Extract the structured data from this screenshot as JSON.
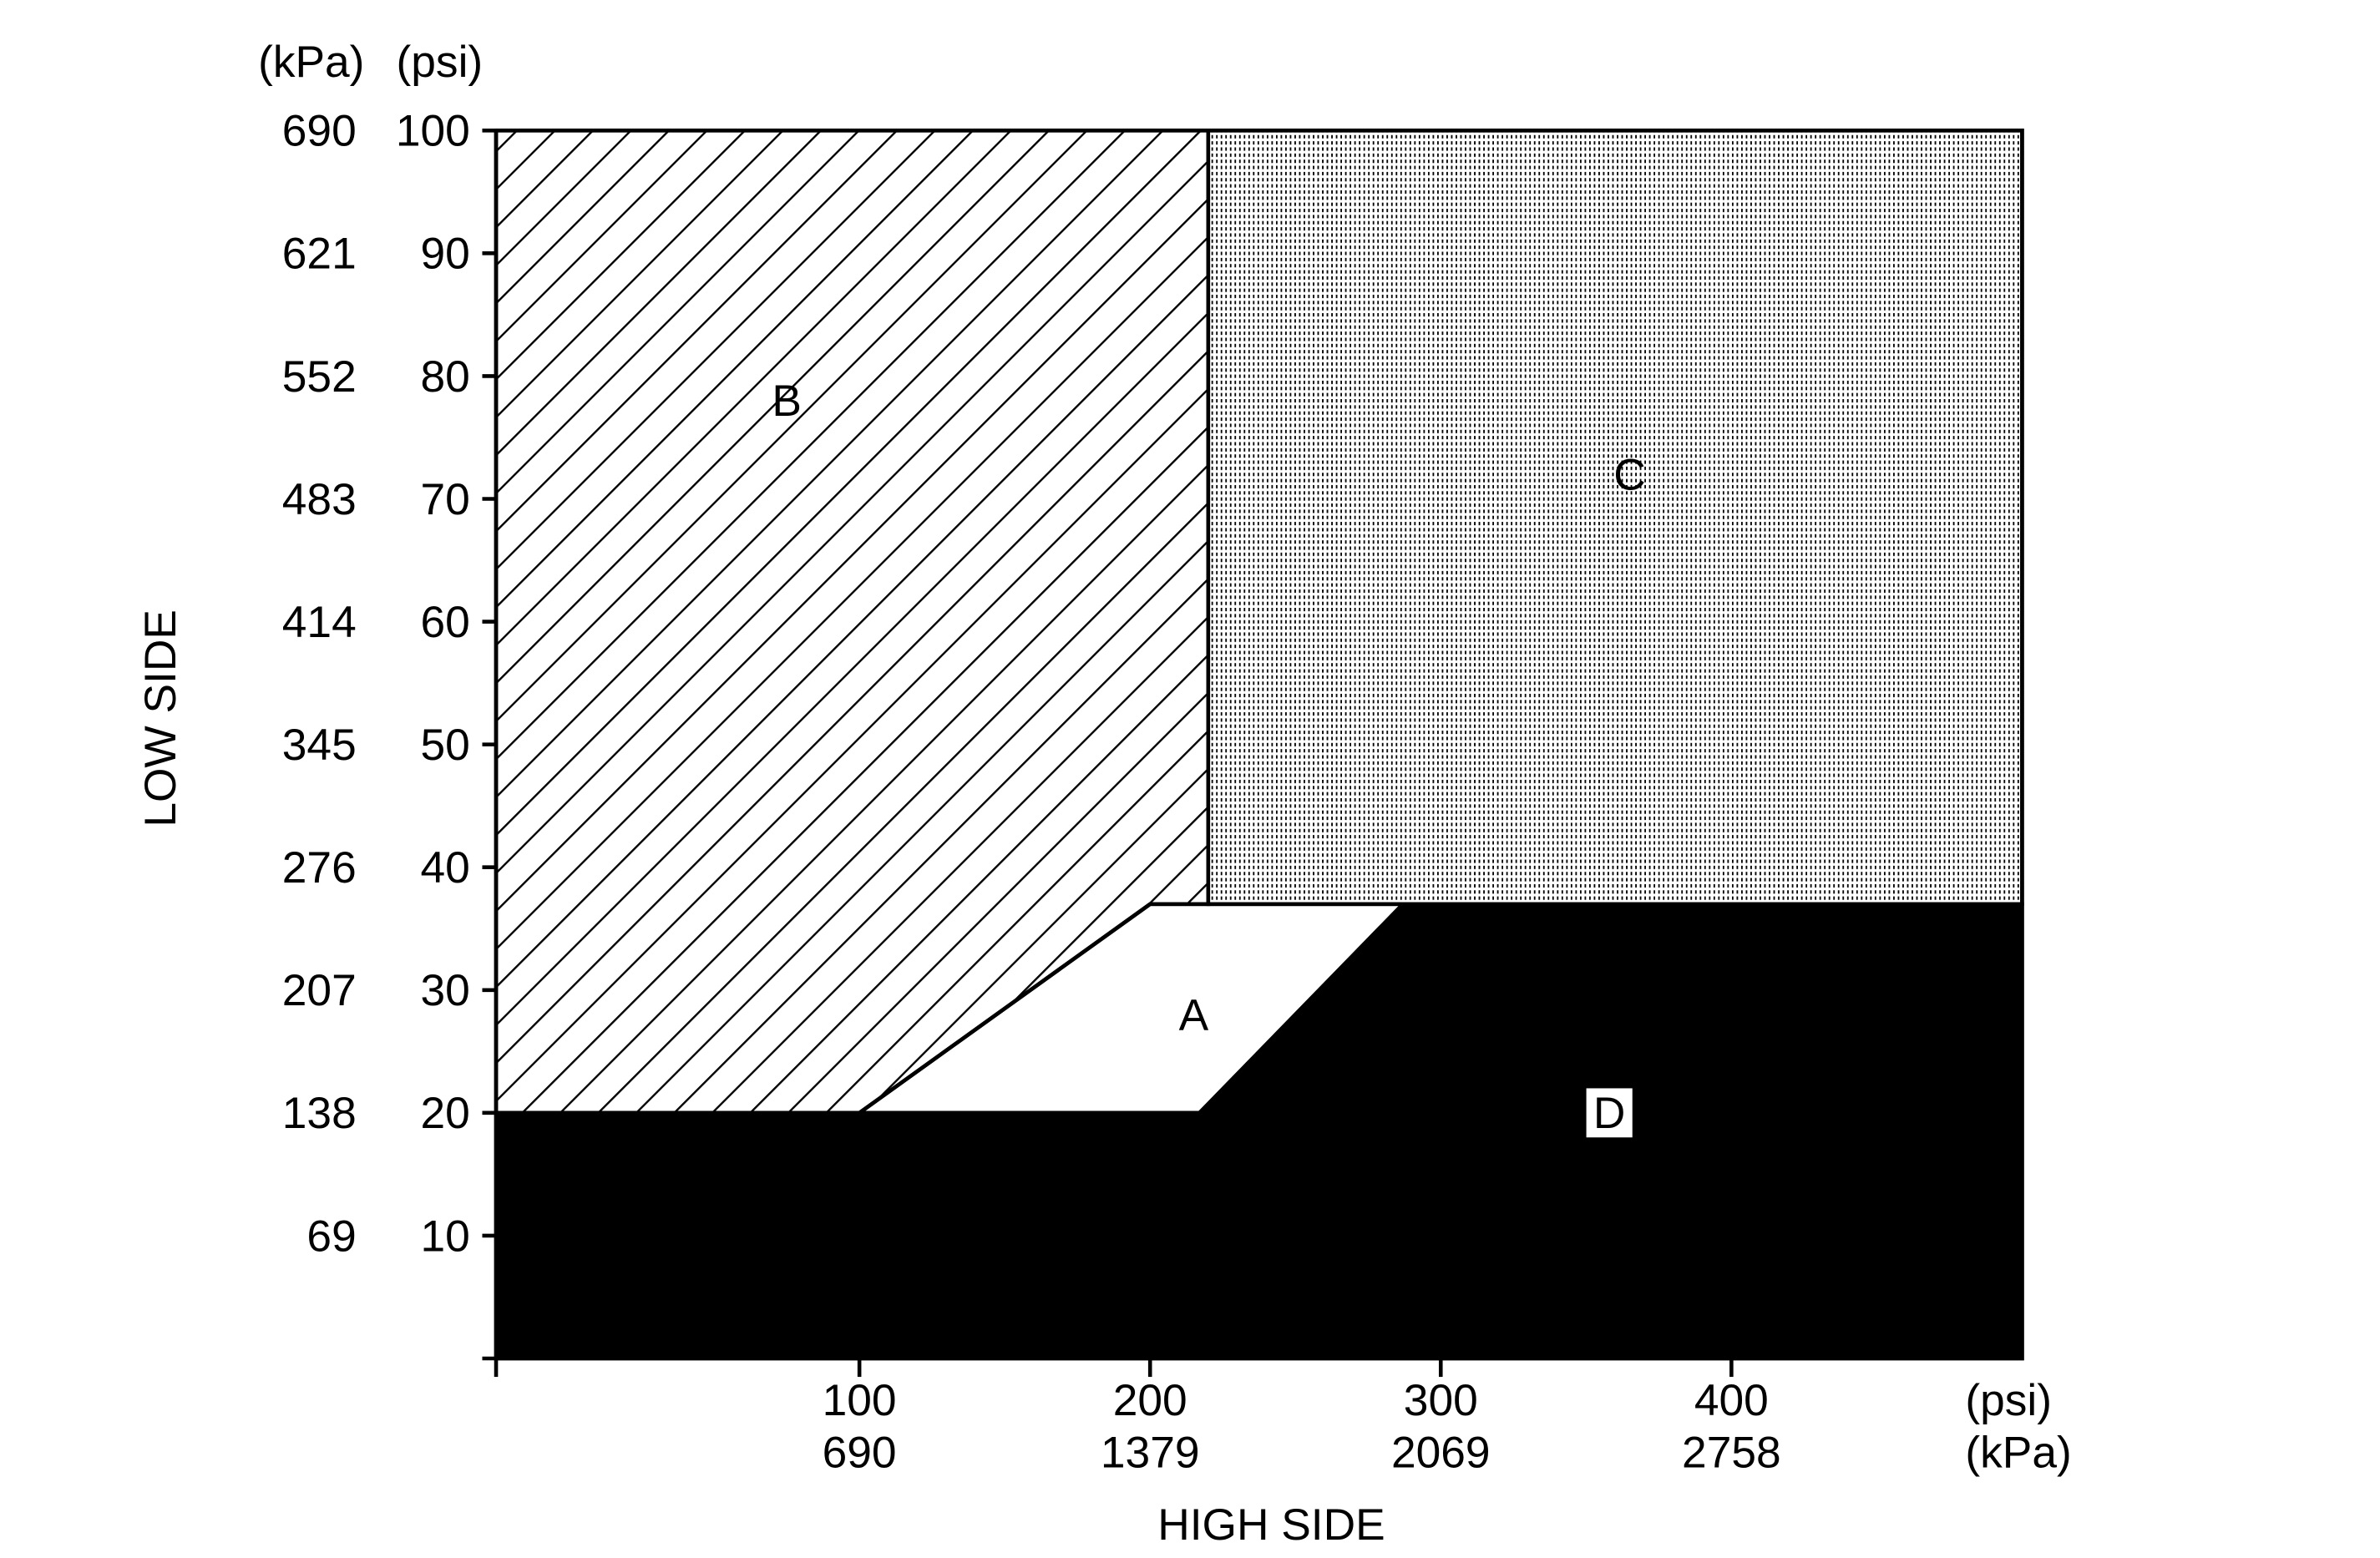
{
  "chart_data": {
    "type": "area",
    "title": "",
    "xlabel": "HIGH SIDE",
    "ylabel": "LOW SIDE",
    "xlim": [
      -25,
      500
    ],
    "ylim": [
      0,
      100
    ],
    "grid": false,
    "x_unit_primary": "(psi)",
    "x_unit_secondary": "(kPa)",
    "y_unit_primary": "(psi)",
    "y_unit_secondary": "(kPa)",
    "x_ticks": [
      {
        "psi": 100,
        "psi_label": "100",
        "kpa_label": "690"
      },
      {
        "psi": 200,
        "psi_label": "200",
        "kpa_label": "1379"
      },
      {
        "psi": 300,
        "psi_label": "300",
        "kpa_label": "2069"
      },
      {
        "psi": 400,
        "psi_label": "400",
        "kpa_label": "2758"
      }
    ],
    "y_ticks": [
      {
        "psi": 10,
        "psi_label": "10",
        "kpa_label": "69"
      },
      {
        "psi": 20,
        "psi_label": "20",
        "kpa_label": "138"
      },
      {
        "psi": 30,
        "psi_label": "30",
        "kpa_label": "207"
      },
      {
        "psi": 40,
        "psi_label": "40",
        "kpa_label": "276"
      },
      {
        "psi": 50,
        "psi_label": "50",
        "kpa_label": "345"
      },
      {
        "psi": 60,
        "psi_label": "60",
        "kpa_label": "414"
      },
      {
        "psi": 70,
        "psi_label": "70",
        "kpa_label": "483"
      },
      {
        "psi": 80,
        "psi_label": "80",
        "kpa_label": "552"
      },
      {
        "psi": 90,
        "psi_label": "90",
        "kpa_label": "621"
      },
      {
        "psi": 100,
        "psi_label": "100",
        "kpa_label": "690"
      }
    ],
    "regions": [
      {
        "label": "A",
        "fill": "white",
        "polygon": [
          [
            100,
            20
          ],
          [
            217,
            20
          ],
          [
            287,
            37
          ],
          [
            200,
            37
          ]
        ],
        "label_at": [
          215,
          28
        ]
      },
      {
        "label": "B",
        "fill": "diagonal-hatch",
        "polygon": [
          [
            -25,
            20
          ],
          [
            100,
            20
          ],
          [
            200,
            37
          ],
          [
            220,
            37
          ],
          [
            220,
            100
          ],
          [
            -25,
            100
          ]
        ],
        "label_at": [
          75,
          78
        ]
      },
      {
        "label": "C",
        "fill": "dot-stipple",
        "polygon": [
          [
            220,
            37
          ],
          [
            500,
            37
          ],
          [
            500,
            100
          ],
          [
            220,
            100
          ]
        ],
        "label_at": [
          365,
          72
        ]
      },
      {
        "label": "D",
        "fill": "black",
        "polygon": [
          [
            -25,
            0
          ],
          [
            500,
            0
          ],
          [
            500,
            37
          ],
          [
            287,
            37
          ],
          [
            217,
            20
          ],
          [
            -25,
            20
          ]
        ],
        "label_at": [
          358,
          20
        ]
      }
    ],
    "colors": {
      "black": "#000000",
      "white": "#ffffff",
      "stipple": "#c8c8c8"
    }
  }
}
